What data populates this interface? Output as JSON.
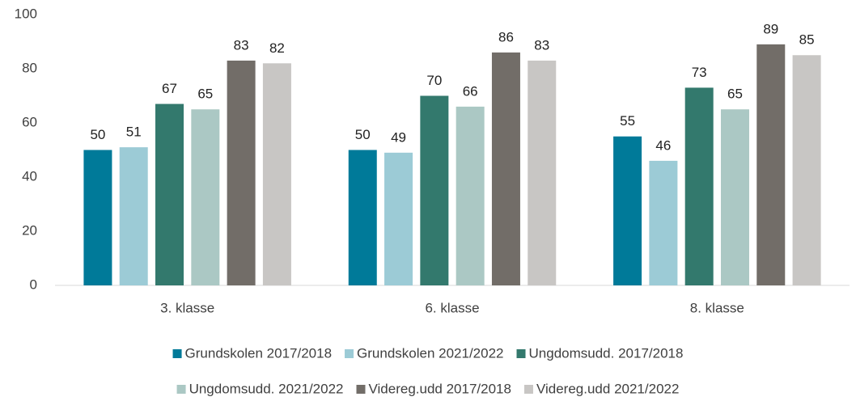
{
  "chart_data": {
    "type": "bar",
    "categories": [
      "3. klasse",
      "6. klasse",
      "8. klasse"
    ],
    "series": [
      {
        "name": "Grundskolen 2017/2018",
        "color": "#007a99",
        "values": [
          50,
          50,
          55
        ]
      },
      {
        "name": "Grundskolen 2021/2022",
        "color": "#9ccbd6",
        "values": [
          51,
          49,
          46
        ]
      },
      {
        "name": "Ungdomsudd. 2017/2018",
        "color": "#33796d",
        "values": [
          67,
          70,
          73
        ]
      },
      {
        "name": "Ungdomsudd. 2021/2022",
        "color": "#abc8c4",
        "values": [
          65,
          66,
          65
        ]
      },
      {
        "name": "Videreg.udd 2017/2018",
        "color": "#726d68",
        "values": [
          83,
          86,
          89
        ]
      },
      {
        "name": "Videreg.udd 2021/2022",
        "color": "#c8c6c4",
        "values": [
          82,
          83,
          85
        ]
      }
    ],
    "ylim": [
      0,
      100
    ],
    "yticks": [
      0,
      20,
      40,
      60,
      80,
      100
    ],
    "grid": false,
    "legend": "bottom"
  }
}
